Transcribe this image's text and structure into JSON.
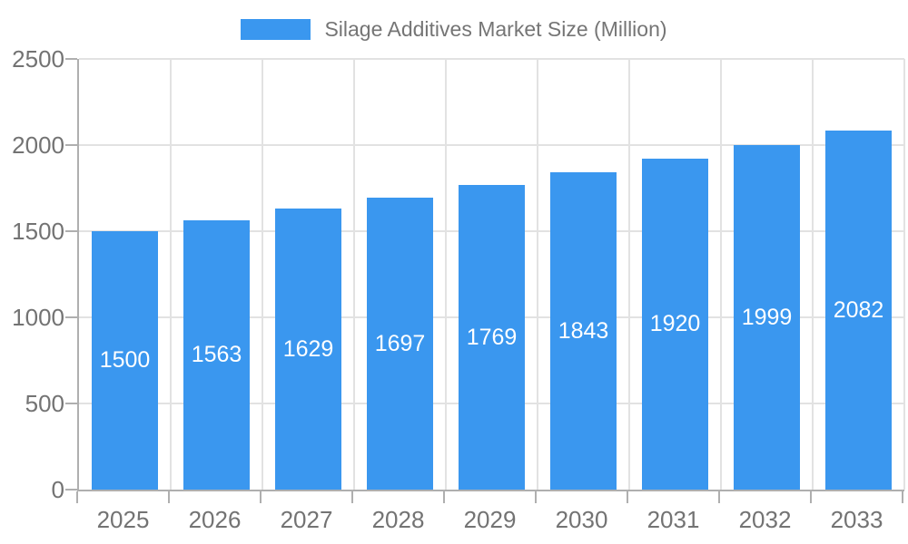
{
  "chart_data": {
    "type": "bar",
    "title": "Silage Additives Market Size (Million)",
    "categories": [
      "2025",
      "2026",
      "2027",
      "2028",
      "2029",
      "2030",
      "2031",
      "2032",
      "2033"
    ],
    "values": [
      1500,
      1563,
      1629,
      1697,
      1769,
      1843,
      1920,
      1999,
      2082
    ],
    "xlabel": "",
    "ylabel": "",
    "ylim": [
      0,
      2500
    ],
    "yticks": [
      0,
      500,
      1000,
      1500,
      2000,
      2500
    ],
    "grid": true,
    "legend_position": "top",
    "bar_color": "#3A97EF",
    "value_label_color": "#FFFFFF",
    "axis_text_color": "#737373",
    "grid_color": "#E2E2E2",
    "axis_line_color": "#AFAFAF"
  },
  "legend": {
    "label": "Silage Additives Market Size (Million)",
    "swatch_color": "#3A97EF"
  }
}
